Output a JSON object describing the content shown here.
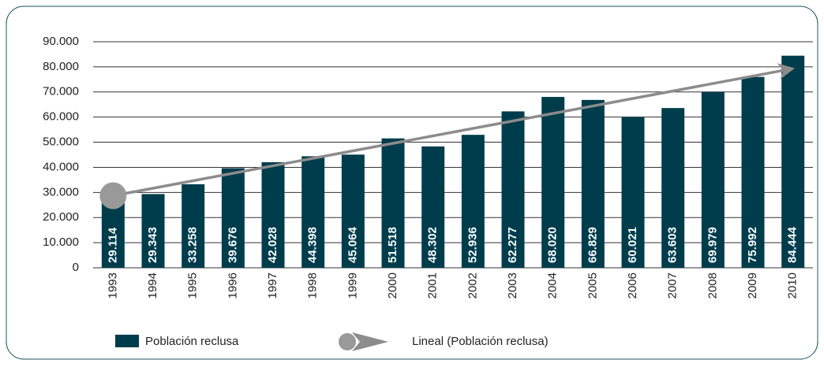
{
  "chart_data": {
    "type": "bar",
    "categories": [
      "1993",
      "1994",
      "1995",
      "1996",
      "1997",
      "1998",
      "1999",
      "2000",
      "2001",
      "2002",
      "2003",
      "2004",
      "2005",
      "2006",
      "2007",
      "2008",
      "2009",
      "2010"
    ],
    "series": [
      {
        "name": "Población reclusa",
        "color": "#003d4c",
        "values": [
          29114,
          29343,
          33258,
          39676,
          42028,
          44398,
          45064,
          51518,
          48302,
          52936,
          62277,
          68020,
          66829,
          60021,
          63603,
          69979,
          75992,
          84444
        ],
        "value_labels": [
          "29.114",
          "29.343",
          "33.258",
          "39.676",
          "42.028",
          "44.398",
          "45.064",
          "51.518",
          "48.302",
          "52.936",
          "62.277",
          "68.020",
          "66.829",
          "60.021",
          "63.603",
          "69.979",
          "75.992",
          "84.444"
        ]
      }
    ],
    "trendline": {
      "name": "Lineal (Población reclusa)",
      "color": "#8c8c8c"
    },
    "ylim": [
      0,
      90000
    ],
    "yticks": [
      0,
      {
        "value": 10000,
        "label": "10.000"
      },
      {
        "value": 20000,
        "label": "20.000"
      },
      {
        "value": 30000,
        "label": "30.000"
      },
      {
        "value": 40000,
        "label": "40.000"
      },
      {
        "value": 50000,
        "label": "50.000"
      },
      {
        "value": 60000,
        "label": "60.000"
      },
      {
        "value": 70000,
        "label": "70.000"
      },
      {
        "value": 80000,
        "label": "80.000"
      },
      {
        "value": 90000,
        "label": "90.000"
      }
    ],
    "grid": true
  }
}
